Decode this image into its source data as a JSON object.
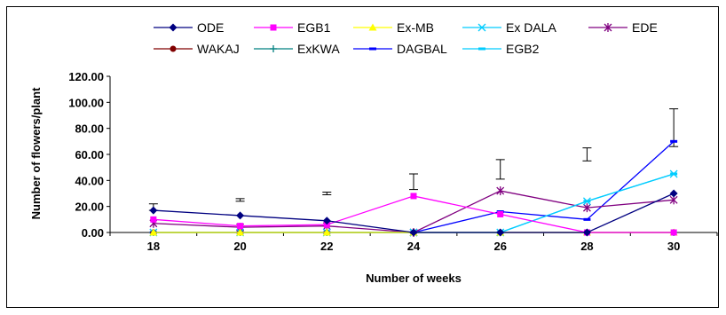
{
  "chart_data": {
    "type": "line",
    "xlabel": "Number of weeks",
    "ylabel": "Number of flowers/plant",
    "ylim": [
      0,
      120
    ],
    "y_ticks": [
      "0.00",
      "20.00",
      "40.00",
      "60.00",
      "80.00",
      "100.00",
      "120.00"
    ],
    "categories": [
      "18",
      "20",
      "22",
      "24",
      "26",
      "28",
      "30"
    ],
    "legend_position": "top",
    "grid": false,
    "series": [
      {
        "name": "ODE",
        "color": "#000080",
        "marker": "diamond",
        "values": [
          17,
          13,
          9,
          0,
          0,
          0,
          30
        ]
      },
      {
        "name": "EGB1",
        "color": "#FF00FF",
        "marker": "square",
        "values": [
          10,
          5,
          6,
          28,
          14,
          0,
          0
        ]
      },
      {
        "name": "Ex-MB",
        "color": "#FFFF00",
        "marker": "triangle",
        "values": [
          0,
          0,
          0,
          0,
          0,
          0,
          0
        ]
      },
      {
        "name": "Ex DALA",
        "color": "#00CCFF",
        "marker": "x",
        "values": [
          0,
          0,
          0,
          0,
          0,
          24,
          45
        ]
      },
      {
        "name": "EDE",
        "color": "#800080",
        "marker": "star",
        "values": [
          7,
          4,
          5,
          0,
          32,
          19,
          25
        ]
      },
      {
        "name": "WAKAJ",
        "color": "#800000",
        "marker": "circle",
        "values": [
          0,
          0,
          0,
          0,
          0,
          0,
          0
        ]
      },
      {
        "name": "ExKWA",
        "color": "#008080",
        "marker": "plus",
        "values": [
          0,
          0,
          0,
          0,
          0,
          0,
          0
        ]
      },
      {
        "name": "DAGBAL",
        "color": "#0000FF",
        "marker": "dash",
        "values": [
          0,
          0,
          0,
          0,
          16,
          10,
          70
        ]
      },
      {
        "name": "EGB2",
        "color": "#00CCFF",
        "marker": "dash",
        "values": [
          0,
          0,
          0,
          0,
          0,
          24,
          45
        ]
      }
    ],
    "error_bars": [
      {
        "x": "18",
        "low": 17,
        "high": 22
      },
      {
        "x": "20",
        "low": 24,
        "high": 26
      },
      {
        "x": "22",
        "low": 29,
        "high": 31
      },
      {
        "x": "24",
        "low": 33,
        "high": 45
      },
      {
        "x": "26",
        "low": 41,
        "high": 56
      },
      {
        "x": "28",
        "low": 55,
        "high": 65
      },
      {
        "x": "30",
        "low": 66,
        "high": 95
      }
    ]
  }
}
